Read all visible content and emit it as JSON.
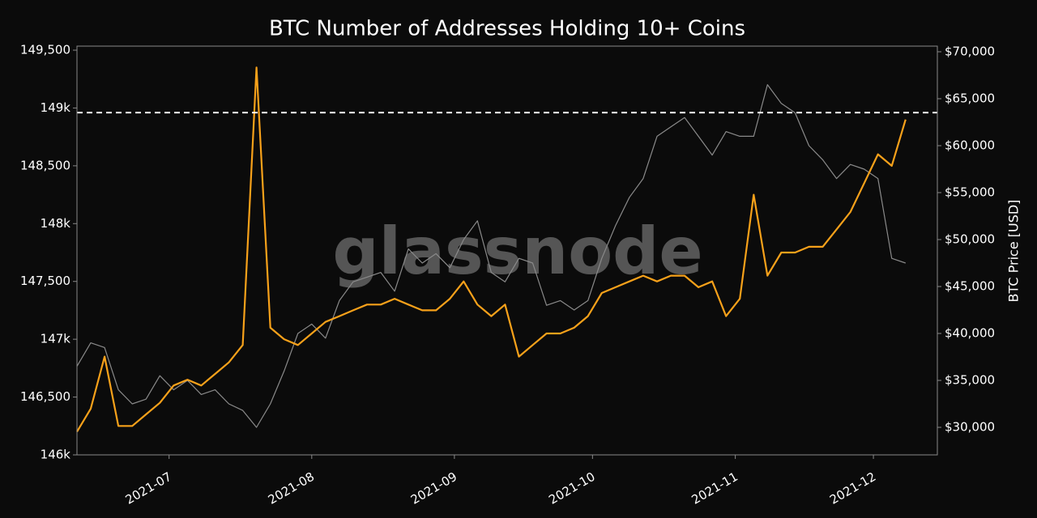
{
  "chart_data": {
    "type": "line",
    "title": "BTC Number of Addresses Holding 10+ Coins",
    "watermark": "glassnode",
    "y2label": "BTC Price [USD]",
    "xlim": [
      0,
      62.3
    ],
    "xticks": [
      {
        "value": 6.67,
        "label": "2021-07"
      },
      {
        "value": 17,
        "label": "2021-08"
      },
      {
        "value": 27.33,
        "label": "2021-09"
      },
      {
        "value": 37.33,
        "label": "2021-10"
      },
      {
        "value": 47.67,
        "label": "2021-11"
      },
      {
        "value": 57.67,
        "label": "2021-12"
      }
    ],
    "ylim": [
      146000,
      149535
    ],
    "yticks": [
      {
        "value": 146000,
        "label": "146k"
      },
      {
        "value": 146500,
        "label": "146,500"
      },
      {
        "value": 147000,
        "label": "147k"
      },
      {
        "value": 147500,
        "label": "147,500"
      },
      {
        "value": 148000,
        "label": "148k"
      },
      {
        "value": 148500,
        "label": "148,500"
      },
      {
        "value": 149000,
        "label": "149k"
      },
      {
        "value": 149500,
        "label": "149,500"
      }
    ],
    "y2lim": [
      27070,
      70600
    ],
    "y2ticks": [
      {
        "value": 30000,
        "label": "$30,000"
      },
      {
        "value": 35000,
        "label": "$35,000"
      },
      {
        "value": 40000,
        "label": "$40,000"
      },
      {
        "value": 45000,
        "label": "$45,000"
      },
      {
        "value": 50000,
        "label": "$50,000"
      },
      {
        "value": 55000,
        "label": "$55,000"
      },
      {
        "value": 60000,
        "label": "$60,000"
      },
      {
        "value": 65000,
        "label": "$65,000"
      },
      {
        "value": 70000,
        "label": "$70,000"
      }
    ],
    "reference_line": {
      "value": 148960,
      "color": "#ffffff"
    },
    "series": [
      {
        "name": "BTC Price",
        "axis": "y2",
        "color": "#8a8a8a",
        "values": [
          36500,
          39000,
          38500,
          34000,
          32500,
          33000,
          35500,
          34000,
          35000,
          33500,
          34000,
          32500,
          31800,
          30000,
          32500,
          36000,
          40000,
          41000,
          39500,
          43500,
          45500,
          46000,
          46500,
          44500,
          49000,
          47500,
          48500,
          47000,
          50000,
          52000,
          46500,
          45500,
          48000,
          47500,
          43000,
          43500,
          42500,
          43500,
          48000,
          51500,
          54500,
          56500,
          61000,
          62000,
          63000,
          61000,
          59000,
          61500,
          61000,
          61000,
          66500,
          64500,
          63500,
          60000,
          58500,
          56500,
          58000,
          57500,
          56500,
          48000,
          47500
        ]
      },
      {
        "name": "Addresses Holding 10+ Coins",
        "axis": "y",
        "color": "#f7a11a",
        "values": [
          146200,
          146400,
          146850,
          146250,
          146250,
          146350,
          146450,
          146600,
          146650,
          146600,
          146700,
          146800,
          146950,
          149350,
          147100,
          147000,
          146950,
          147050,
          147150,
          147200,
          147250,
          147300,
          147300,
          147350,
          147300,
          147250,
          147250,
          147350,
          147500,
          147300,
          147200,
          147300,
          146850,
          146950,
          147050,
          147050,
          147100,
          147200,
          147400,
          147450,
          147500,
          147550,
          147500,
          147550,
          147550,
          147450,
          147500,
          147200,
          147350,
          148250,
          147550,
          147750,
          147750,
          147800,
          147800,
          147950,
          148100,
          148350,
          148600,
          148500,
          148900
        ]
      }
    ]
  }
}
